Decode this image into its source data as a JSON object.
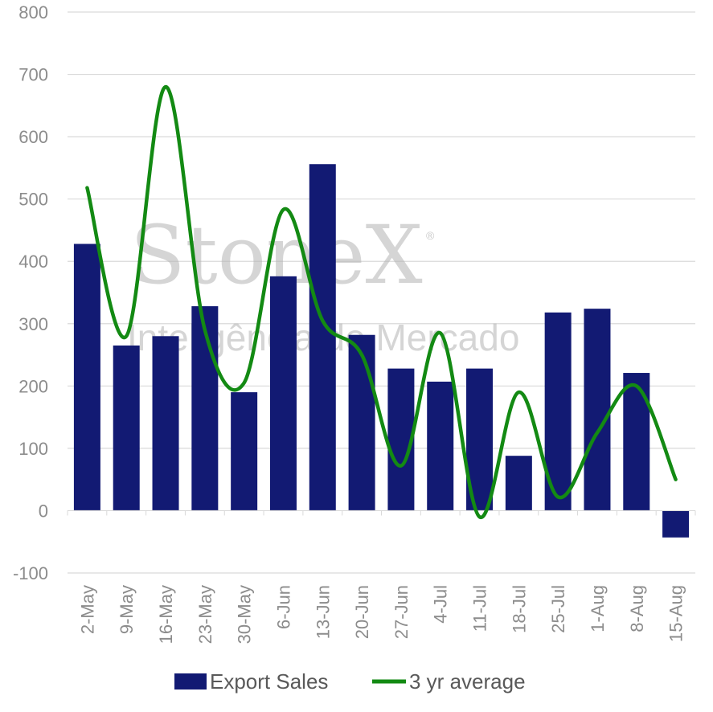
{
  "chart_data": {
    "type": "bar",
    "categories": [
      "2-May",
      "9-May",
      "16-May",
      "23-May",
      "30-May",
      "6-Jun",
      "13-Jun",
      "20-Jun",
      "27-Jun",
      "4-Jul",
      "11-Jul",
      "18-Jul",
      "25-Jul",
      "1-Aug",
      "8-Aug",
      "15-Aug"
    ],
    "series": [
      {
        "name": "Export Sales",
        "type": "bar",
        "color": "#121a73",
        "values": [
          428,
          265,
          280,
          328,
          190,
          376,
          556,
          282,
          228,
          207,
          228,
          88,
          318,
          324,
          221,
          -43
        ]
      },
      {
        "name": "3 yr average",
        "type": "line",
        "color": "#138a13",
        "smooth": true,
        "values": [
          518,
          280,
          680,
          290,
          205,
          483,
          305,
          250,
          72,
          285,
          -10,
          190,
          22,
          125,
          200,
          50
        ]
      }
    ],
    "ylim": [
      -100,
      800
    ],
    "yticks": [
      800,
      700,
      600,
      500,
      400,
      300,
      200,
      100,
      0,
      -100
    ],
    "grid": true,
    "legend_position": "bottom"
  },
  "watermark": {
    "brand": "StoneX",
    "registered": "®",
    "tagline": "Inteligência de Mercado",
    "color": "#b3b3b3"
  }
}
